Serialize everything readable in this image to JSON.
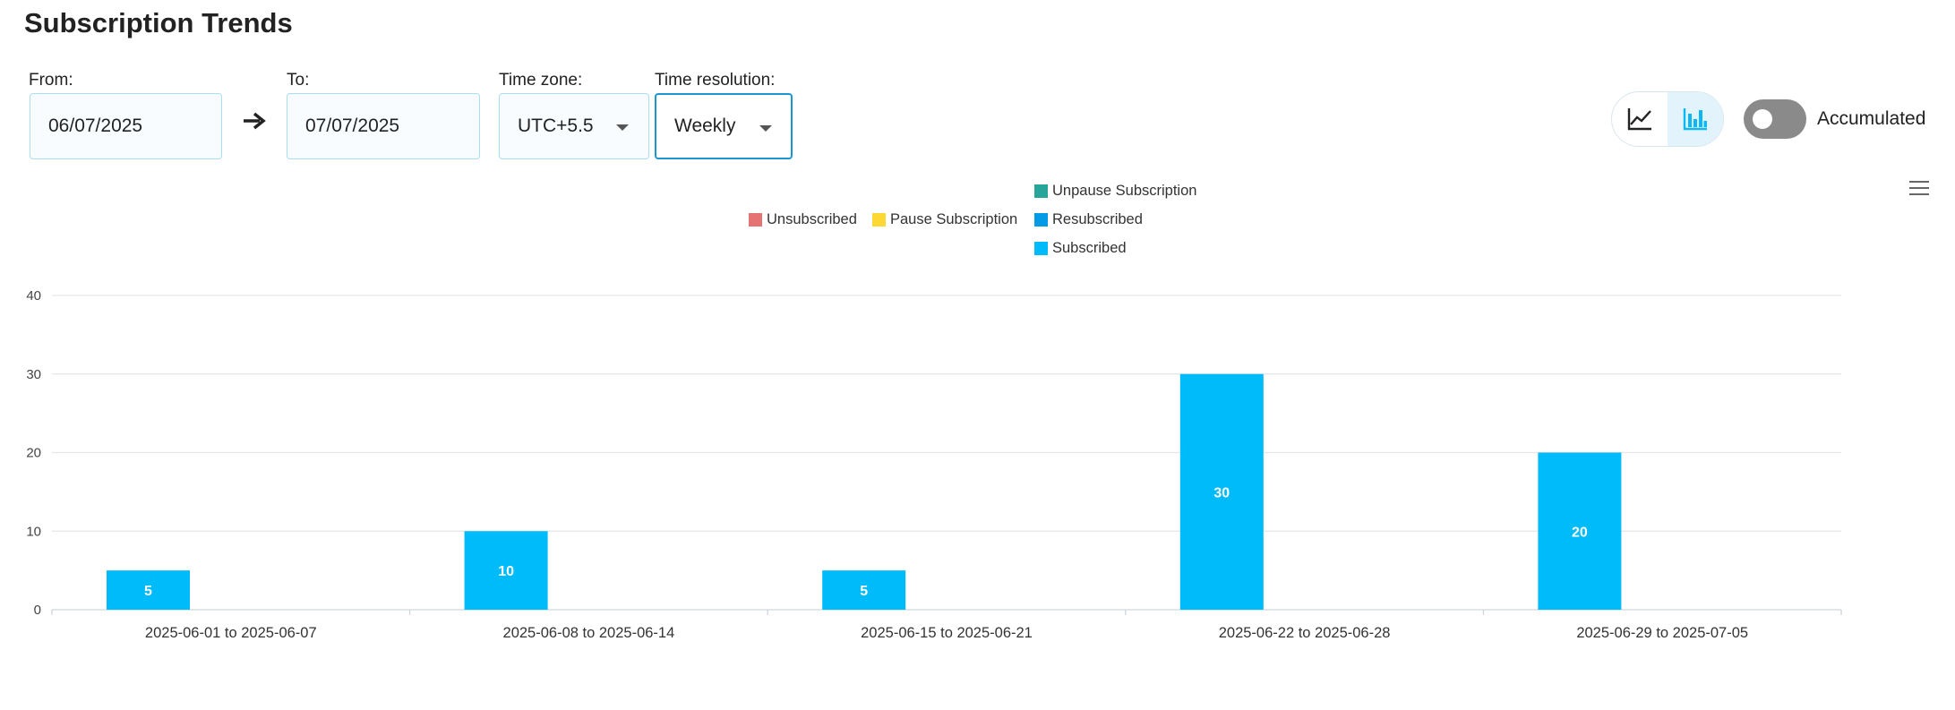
{
  "page": {
    "title": "Subscription Trends"
  },
  "filters": {
    "from": {
      "label": "From:",
      "value": "06/07/2025"
    },
    "to": {
      "label": "To:",
      "value": "07/07/2025"
    },
    "timezone": {
      "label": "Time zone:",
      "value": "UTC+5.5"
    },
    "resolution": {
      "label": "Time resolution:",
      "value": "Weekly"
    }
  },
  "view_toggle": {
    "options": [
      "line-chart-icon",
      "bar-chart-icon"
    ],
    "active": "bar-chart-icon"
  },
  "accumulated": {
    "label": "Accumulated",
    "on": false
  },
  "colors": {
    "accent": "#0ab8f5",
    "unsubscribed": "#e57373",
    "pause": "#fdd835",
    "unpause": "#26a69a",
    "resubscribed": "#039be5",
    "subscribed": "#00bbf9"
  },
  "chart_data": {
    "type": "bar",
    "categories": [
      "2025-06-01 to 2025-06-07",
      "2025-06-08 to 2025-06-14",
      "2025-06-15 to 2025-06-21",
      "2025-06-22 to 2025-06-28",
      "2025-06-29 to 2025-07-05"
    ],
    "series": [
      {
        "name": "Unsubscribed",
        "values": [
          0,
          0,
          0,
          0,
          0
        ]
      },
      {
        "name": "Pause Subscription",
        "values": [
          0,
          0,
          0,
          0,
          0
        ]
      },
      {
        "name": "Unpause Subscription",
        "values": [
          0,
          0,
          0,
          0,
          0
        ]
      },
      {
        "name": "Resubscribed",
        "values": [
          0,
          0,
          0,
          0,
          0
        ]
      },
      {
        "name": "Subscribed",
        "values": [
          5,
          10,
          5,
          30,
          20
        ]
      }
    ],
    "data_labels": [
      "5",
      "10",
      "5",
      "30",
      "20"
    ],
    "ylim": [
      0,
      40
    ],
    "yticks": [
      "0",
      "10",
      "20",
      "30",
      "40"
    ],
    "grid": true,
    "legend_position": "top-center"
  }
}
